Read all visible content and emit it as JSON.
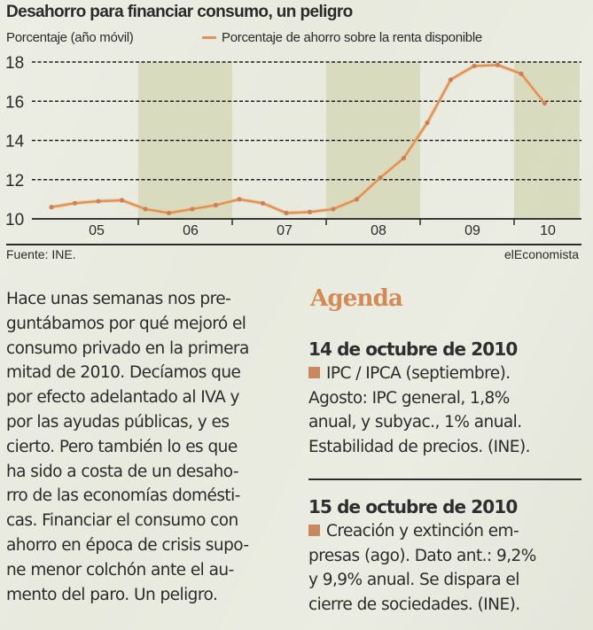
{
  "chart": {
    "title": "Desahorro para financiar consumo, un peligro",
    "unit_caption": "Porcentaje (año móvil)",
    "legend_label": "Porcentaje de ahorro sobre la renta disponible",
    "source": "Fuente: INE.",
    "brand": "elEconomista"
  },
  "chart_data": {
    "type": "line",
    "title": "Desahorro para financiar consumo, un peligro",
    "xlabel": "",
    "ylabel": "Porcentaje (año móvil)",
    "ylim": [
      10,
      18
    ],
    "yticks": [
      10,
      12,
      14,
      16,
      18
    ],
    "grid": "horizontal dashed",
    "legend": "top",
    "x_tick_labels": [
      "05",
      "06",
      "07",
      "08",
      "09",
      "10"
    ],
    "shaded_years": [
      "06",
      "08",
      "10"
    ],
    "x": [
      "2005-Q1",
      "2005-Q2",
      "2005-Q3",
      "2005-Q4",
      "2006-Q1",
      "2006-Q2",
      "2006-Q3",
      "2006-Q4",
      "2007-Q1",
      "2007-Q2",
      "2007-Q3",
      "2007-Q4",
      "2008-Q1",
      "2008-Q2",
      "2008-Q3",
      "2008-Q4",
      "2009-Q1",
      "2009-Q2",
      "2009-Q3",
      "2009-Q4",
      "2010-Q1",
      "2010-Q2"
    ],
    "series": [
      {
        "name": "Porcentaje de ahorro sobre la renta disponible",
        "color": "#d9935a",
        "values": [
          10.6,
          10.8,
          10.9,
          10.95,
          10.5,
          10.3,
          10.5,
          10.7,
          11.0,
          10.8,
          10.3,
          10.35,
          10.5,
          11.0,
          12.1,
          13.1,
          14.9,
          17.1,
          17.8,
          17.85,
          17.4,
          15.9
        ]
      }
    ]
  },
  "article": {
    "lines": [
      "Hace unas semanas nos pre-",
      "guntábamos por qué mejoró el",
      "consumo privado en la primera",
      "mitad de 2010. Decíamos que",
      "por efecto adelantado al IVA y",
      "por las ayudas públicas, y es",
      "cierto. Pero también lo es que",
      "ha sido a costa de un desaho-",
      "rro de las economías domésti-",
      "cas. Financiar el consumo con",
      "ahorro en época de crisis supo-",
      "ne menor colchón ante el au-",
      "mento del paro. Un peligro."
    ]
  },
  "agenda": {
    "title": "Agenda",
    "accent_color": "#d48a56",
    "items": [
      {
        "date": "14 de octubre de 2010",
        "lines": [
          "IPC / IPCA (septiembre).",
          "Agosto: IPC general, 1,8%",
          "anual, y subyac., 1% anual.",
          "Estabilidad de precios. (INE)."
        ]
      },
      {
        "date": "15 de octubre de 2010",
        "lines": [
          "Creación y extinción em-",
          "presas (ago). Dato ant.: 9,2%",
          "y 9,9% anual. Se dispara el",
          "cierre de sociedades. (INE)."
        ]
      }
    ]
  }
}
